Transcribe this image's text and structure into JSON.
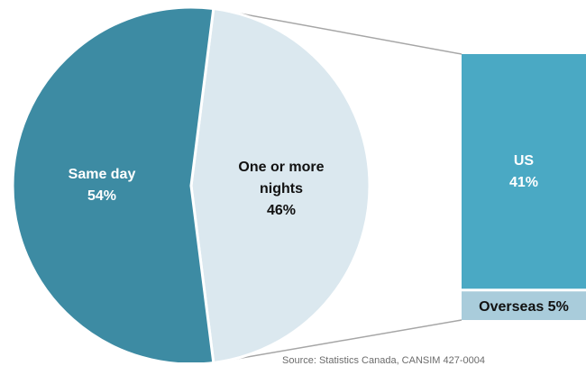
{
  "chart_data": {
    "type": "bar-of-pie",
    "pie": {
      "slices": [
        {
          "label": "Same day",
          "value": 54,
          "value_label": "54%",
          "color": "#3d8ba3",
          "text_color": "#ffffff"
        },
        {
          "label": "One or more nights",
          "value": 46,
          "value_label": "46%",
          "color": "#dbe8ef",
          "text_color": "#111111"
        }
      ]
    },
    "bar": {
      "breakdown_of": "One or more nights",
      "segments": [
        {
          "label": "US",
          "value": 41,
          "value_label": "41%",
          "color": "#4aa9c4",
          "text_color": "#ffffff"
        },
        {
          "label": "Overseas",
          "value": 5,
          "value_label": "5%",
          "color": "#a9ccdb",
          "text_color": "#111111"
        }
      ]
    },
    "connector_color": "#a6a6a6"
  },
  "source": "Source: Statistics Canada, CANSIM 427-0004"
}
